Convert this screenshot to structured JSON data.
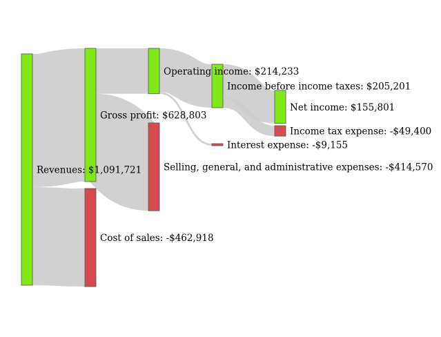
{
  "chart_data": {
    "type": "sankey",
    "nodes": [
      {
        "id": "revenues",
        "label": "Revenues: $1,091,721",
        "value": 1091721,
        "kind": "positive"
      },
      {
        "id": "gross_profit",
        "label": "Gross profit: $628,803",
        "value": 628803,
        "kind": "positive"
      },
      {
        "id": "cost_of_sales",
        "label": "Cost of sales: -$462,918",
        "value": -462918,
        "kind": "negative"
      },
      {
        "id": "operating_income",
        "label": "Operating income: $214,233",
        "value": 214233,
        "kind": "positive"
      },
      {
        "id": "sga",
        "label": "Selling, general, and administrative expenses: -$414,570",
        "value": -414570,
        "kind": "negative"
      },
      {
        "id": "income_before_tax",
        "label": "Income before income taxes: $205,201",
        "value": 205201,
        "kind": "positive"
      },
      {
        "id": "interest_expense",
        "label": "Interest expense: -$9,155",
        "value": -9155,
        "kind": "negative"
      },
      {
        "id": "net_income",
        "label": "Net income: $155,801",
        "value": 155801,
        "kind": "positive"
      },
      {
        "id": "income_tax",
        "label": "Income tax expense: -$49,400",
        "value": -49400,
        "kind": "negative"
      }
    ],
    "links": [
      {
        "source": "revenues",
        "target": "gross_profit",
        "value": 628803
      },
      {
        "source": "revenues",
        "target": "cost_of_sales",
        "value": 462918
      },
      {
        "source": "gross_profit",
        "target": "operating_income",
        "value": 214233
      },
      {
        "source": "gross_profit",
        "target": "sga",
        "value": 414570
      },
      {
        "source": "operating_income",
        "target": "income_before_tax",
        "value": 205201
      },
      {
        "source": "operating_income",
        "target": "interest_expense",
        "value": 9155
      },
      {
        "source": "income_before_tax",
        "target": "net_income",
        "value": 155801
      },
      {
        "source": "income_before_tax",
        "target": "income_tax",
        "value": 49400
      }
    ],
    "colors": {
      "positive": "#7fe817",
      "negative": "#d44a4f",
      "link": "#cccccc",
      "node_border": "#555555"
    }
  }
}
